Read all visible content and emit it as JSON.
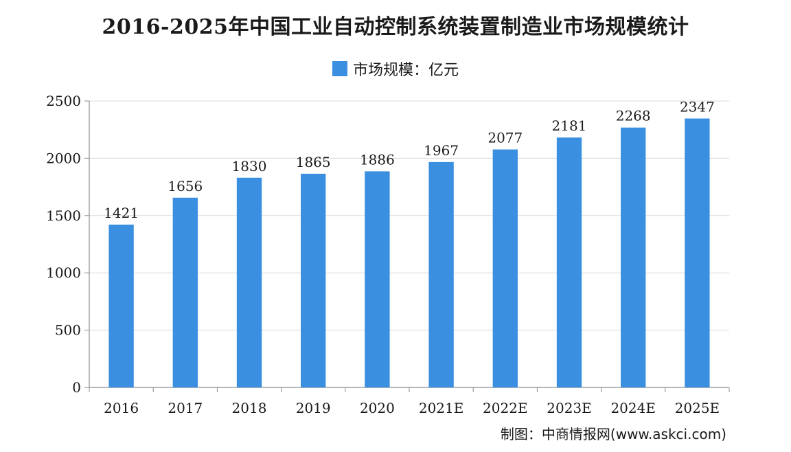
{
  "chart_data": {
    "type": "bar",
    "title": "2016-2025年中国工业自动控制系统装置制造业市场规模统计",
    "xlabel": "",
    "ylabel": "",
    "categories": [
      "2016",
      "2017",
      "2018",
      "2019",
      "2020",
      "2021E",
      "2022E",
      "2023E",
      "2024E",
      "2025E"
    ],
    "series": [
      {
        "name": "市场规模：亿元",
        "values": [
          1421,
          1656,
          1830,
          1865,
          1886,
          1967,
          2077,
          2181,
          2268,
          2347
        ]
      }
    ],
    "ylim": [
      0,
      2500
    ],
    "yticks": [
      "0",
      "500",
      "1000",
      "1500",
      "2000",
      "2500"
    ],
    "grid": true,
    "legend_position": "top-center",
    "bar_color": "#3a8fe0",
    "grid_color": "#d9d9d9",
    "axis_color": "#8c8c8c"
  },
  "source": "制图：中商情报网(www.askci.com)"
}
